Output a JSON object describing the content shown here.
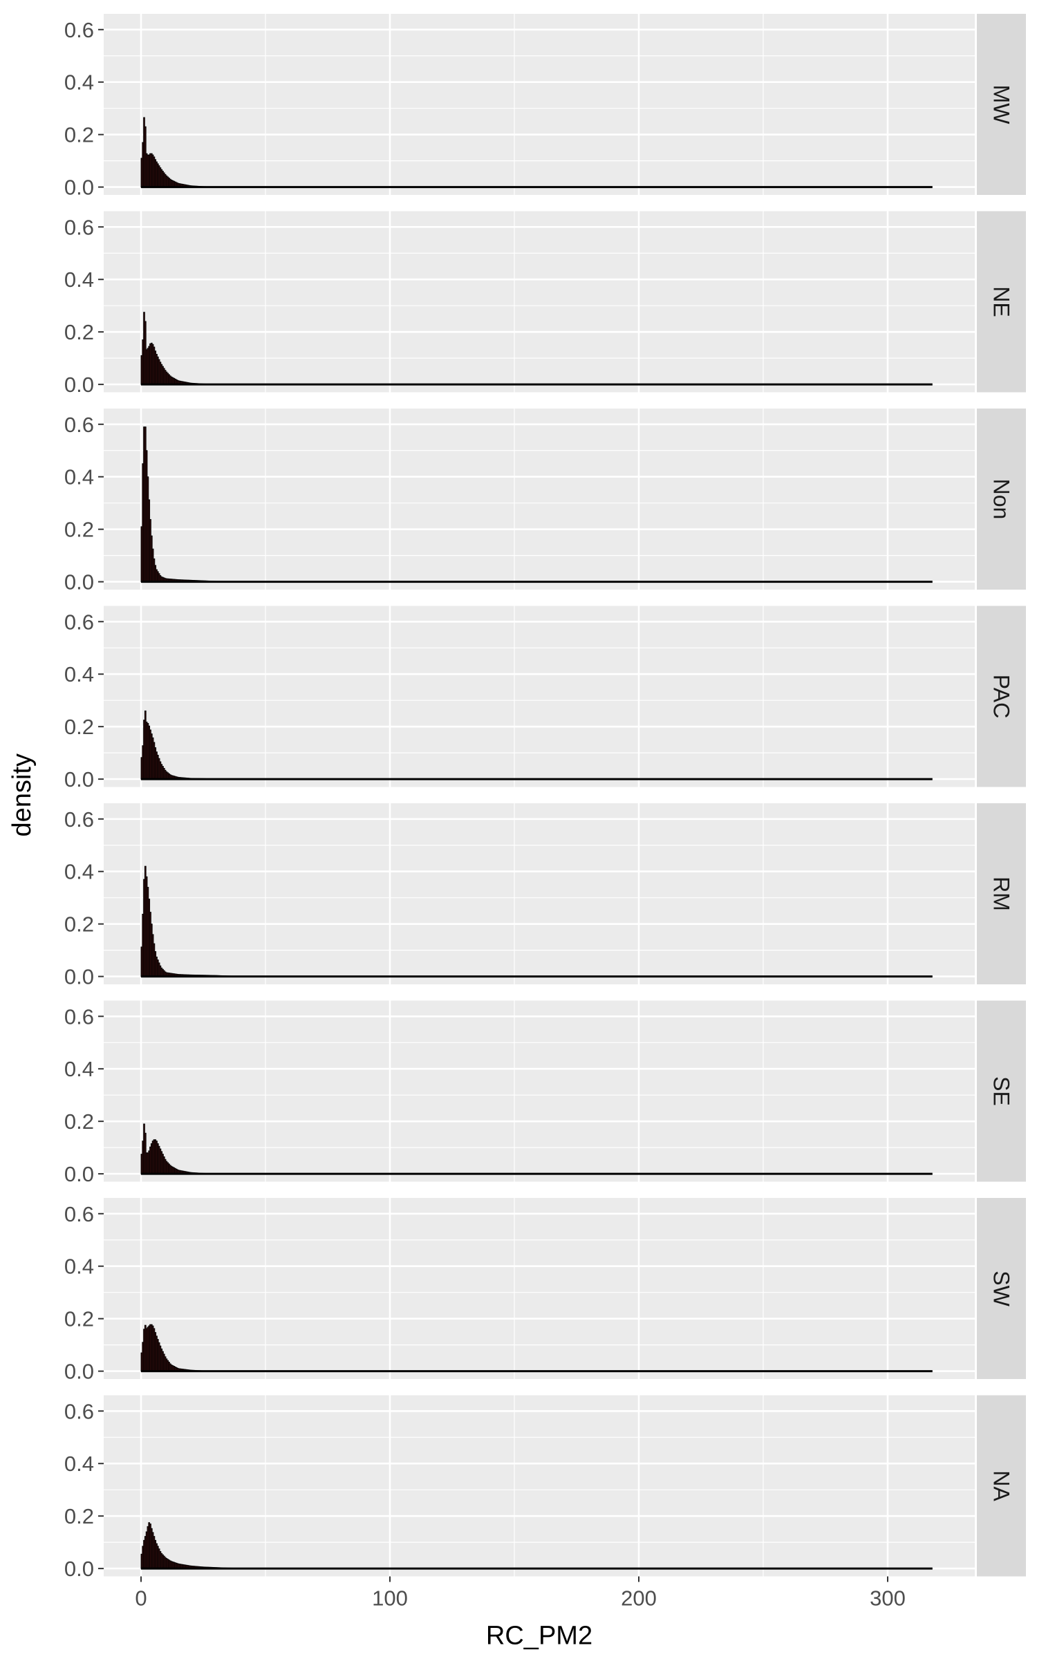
{
  "chart_data": {
    "type": "histogram",
    "facet_direction": "rows",
    "xlabel": "RC_PM2",
    "ylabel": "density",
    "xlim": [
      -15,
      335
    ],
    "ylim": [
      -0.03,
      0.66
    ],
    "x_ticks": [
      0,
      100,
      200,
      300
    ],
    "x_tick_labels": [
      "0",
      "100",
      "200",
      "300"
    ],
    "y_ticks": [
      0.0,
      0.2,
      0.4,
      0.6
    ],
    "y_tick_labels": [
      "0.0",
      "0.2",
      "0.4",
      "0.6"
    ],
    "x_range": [
      0,
      318
    ],
    "grid": true,
    "legend": "none",
    "colors": {
      "panel_background": "#ebebeb",
      "grid_line": "#ffffff",
      "strip_background": "#d9d9d9",
      "fill": "#3a1010",
      "outline": "#000000"
    },
    "panels": [
      {
        "label": "MW",
        "profile": [
          [
            0,
            0.08
          ],
          [
            1,
            0.2
          ],
          [
            1.5,
            0.33
          ],
          [
            2,
            0.13
          ],
          [
            3,
            0.12
          ],
          [
            4,
            0.13
          ],
          [
            5,
            0.12
          ],
          [
            6,
            0.1
          ],
          [
            8,
            0.07
          ],
          [
            10,
            0.045
          ],
          [
            12,
            0.028
          ],
          [
            15,
            0.014
          ],
          [
            20,
            0.005
          ],
          [
            25,
            0.002
          ],
          [
            30,
            0.0008
          ],
          [
            40,
            0.0002
          ],
          [
            60,
            0
          ]
        ]
      },
      {
        "label": "NE",
        "profile": [
          [
            0,
            0.08
          ],
          [
            1,
            0.2
          ],
          [
            1.5,
            0.35
          ],
          [
            2,
            0.13
          ],
          [
            3,
            0.14
          ],
          [
            4,
            0.16
          ],
          [
            5,
            0.15
          ],
          [
            6,
            0.12
          ],
          [
            8,
            0.08
          ],
          [
            10,
            0.05
          ],
          [
            12,
            0.03
          ],
          [
            15,
            0.014
          ],
          [
            20,
            0.005
          ],
          [
            25,
            0.002
          ],
          [
            30,
            0.0008
          ],
          [
            40,
            0.0002
          ],
          [
            60,
            0
          ]
        ]
      },
      {
        "label": "Non",
        "profile": [
          [
            0,
            0.07
          ],
          [
            0.5,
            0.35
          ],
          [
            1,
            0.55
          ],
          [
            1.5,
            0.63
          ],
          [
            2,
            0.55
          ],
          [
            3,
            0.35
          ],
          [
            4,
            0.2
          ],
          [
            5,
            0.1
          ],
          [
            6,
            0.05
          ],
          [
            8,
            0.02
          ],
          [
            10,
            0.012
          ],
          [
            15,
            0.008
          ],
          [
            20,
            0.006
          ],
          [
            25,
            0.004
          ],
          [
            30,
            0.002
          ],
          [
            40,
            0.001
          ],
          [
            60,
            0
          ]
        ]
      },
      {
        "label": "PAC",
        "profile": [
          [
            0,
            0.06
          ],
          [
            1,
            0.15
          ],
          [
            1.5,
            0.3
          ],
          [
            2,
            0.22
          ],
          [
            3,
            0.21
          ],
          [
            4,
            0.18
          ],
          [
            5,
            0.15
          ],
          [
            6,
            0.11
          ],
          [
            8,
            0.06
          ],
          [
            10,
            0.03
          ],
          [
            12,
            0.015
          ],
          [
            15,
            0.007
          ],
          [
            20,
            0.003
          ],
          [
            30,
            0.001
          ],
          [
            40,
            0.0003
          ],
          [
            60,
            0
          ]
        ]
      },
      {
        "label": "RM",
        "profile": [
          [
            0,
            0.05
          ],
          [
            1,
            0.3
          ],
          [
            1.5,
            0.44
          ],
          [
            2,
            0.4
          ],
          [
            3,
            0.32
          ],
          [
            4,
            0.22
          ],
          [
            5,
            0.14
          ],
          [
            6,
            0.08
          ],
          [
            8,
            0.035
          ],
          [
            10,
            0.015
          ],
          [
            15,
            0.008
          ],
          [
            20,
            0.006
          ],
          [
            25,
            0.005
          ],
          [
            30,
            0.004
          ],
          [
            35,
            0.002
          ],
          [
            45,
            0.0005
          ],
          [
            60,
            0
          ]
        ]
      },
      {
        "label": "SE",
        "profile": [
          [
            0,
            0.05
          ],
          [
            1,
            0.15
          ],
          [
            1.5,
            0.23
          ],
          [
            2,
            0.08
          ],
          [
            3,
            0.08
          ],
          [
            4,
            0.11
          ],
          [
            5,
            0.13
          ],
          [
            6,
            0.13
          ],
          [
            7,
            0.11
          ],
          [
            8,
            0.09
          ],
          [
            10,
            0.05
          ],
          [
            12,
            0.03
          ],
          [
            15,
            0.014
          ],
          [
            20,
            0.005
          ],
          [
            25,
            0.002
          ],
          [
            30,
            0.0008
          ],
          [
            40,
            0.0002
          ],
          [
            60,
            0
          ]
        ]
      },
      {
        "label": "SW",
        "profile": [
          [
            0,
            0.05
          ],
          [
            1,
            0.13
          ],
          [
            1.5,
            0.19
          ],
          [
            2,
            0.16
          ],
          [
            3,
            0.17
          ],
          [
            4,
            0.18
          ],
          [
            5,
            0.17
          ],
          [
            6,
            0.14
          ],
          [
            8,
            0.09
          ],
          [
            10,
            0.05
          ],
          [
            12,
            0.025
          ],
          [
            15,
            0.01
          ],
          [
            20,
            0.004
          ],
          [
            25,
            0.0015
          ],
          [
            30,
            0.0005
          ],
          [
            40,
            0.0001
          ],
          [
            60,
            0
          ]
        ]
      },
      {
        "label": "NA",
        "profile": [
          [
            0,
            0.04
          ],
          [
            1,
            0.1
          ],
          [
            2,
            0.13
          ],
          [
            3,
            0.17
          ],
          [
            3.5,
            0.18
          ],
          [
            4,
            0.16
          ],
          [
            5,
            0.13
          ],
          [
            6,
            0.1
          ],
          [
            8,
            0.06
          ],
          [
            10,
            0.04
          ],
          [
            12,
            0.028
          ],
          [
            15,
            0.018
          ],
          [
            20,
            0.01
          ],
          [
            25,
            0.006
          ],
          [
            30,
            0.004
          ],
          [
            35,
            0.002
          ],
          [
            45,
            0.0005
          ],
          [
            60,
            0
          ]
        ]
      }
    ]
  }
}
